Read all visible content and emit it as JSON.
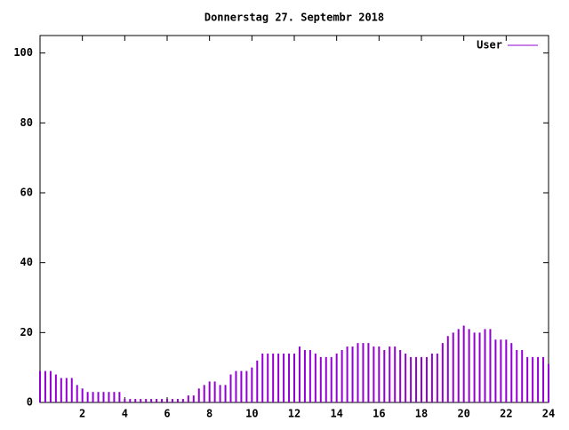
{
  "chart_data": {
    "type": "impulse",
    "title": "Donnerstag 27. Septembr 2018",
    "x": [
      0,
      0.25,
      0.5,
      0.75,
      1,
      1.25,
      1.5,
      1.75,
      2,
      2.25,
      2.5,
      2.75,
      3,
      3.25,
      3.5,
      3.75,
      4,
      4.25,
      4.5,
      4.75,
      5,
      5.25,
      5.5,
      5.75,
      6,
      6.25,
      6.5,
      6.75,
      7,
      7.25,
      7.5,
      7.75,
      8,
      8.25,
      8.5,
      8.75,
      9,
      9.25,
      9.5,
      9.75,
      10,
      10.25,
      10.5,
      10.75,
      11,
      11.25,
      11.5,
      11.75,
      12,
      12.25,
      12.5,
      12.75,
      13,
      13.25,
      13.5,
      13.75,
      14,
      14.25,
      14.5,
      14.75,
      15,
      15.25,
      15.5,
      15.75,
      16,
      16.25,
      16.5,
      16.75,
      17,
      17.25,
      17.5,
      17.75,
      18,
      18.25,
      18.5,
      18.75,
      19,
      19.25,
      19.5,
      19.75,
      20,
      20.25,
      20.5,
      20.75,
      21,
      21.25,
      21.5,
      21.75,
      22,
      22.25,
      22.5,
      22.75,
      23,
      23.25,
      23.5,
      23.75,
      24
    ],
    "series": [
      {
        "name": "User",
        "color": "#9400d3",
        "values": [
          9,
          9,
          9,
          8,
          7,
          7,
          7,
          5,
          4,
          3,
          3,
          3,
          3,
          3,
          3,
          3,
          1,
          1,
          1,
          1,
          1,
          1,
          1,
          1,
          1,
          1,
          1,
          1,
          2,
          2,
          4,
          5,
          6,
          6,
          5,
          5,
          8,
          9,
          9,
          9,
          10,
          12,
          14,
          14,
          14,
          14,
          14,
          14,
          14,
          16,
          15,
          15,
          14,
          13,
          13,
          13,
          14,
          15,
          16,
          16,
          17,
          17,
          17,
          16,
          16,
          15,
          16,
          16,
          15,
          14,
          13,
          13,
          13,
          13,
          14,
          14,
          17,
          19,
          20,
          21,
          22,
          21,
          20,
          20,
          21,
          21,
          18,
          18,
          18,
          17,
          15,
          15,
          13,
          13,
          13,
          13,
          11
        ]
      }
    ],
    "xlim": [
      0,
      24
    ],
    "xticks": [
      2,
      4,
      6,
      8,
      10,
      12,
      14,
      16,
      18,
      20,
      22,
      24
    ],
    "ylim": [
      0,
      105
    ],
    "yticks": [
      0,
      20,
      40,
      60,
      80,
      100
    ],
    "legend": "top-right"
  }
}
